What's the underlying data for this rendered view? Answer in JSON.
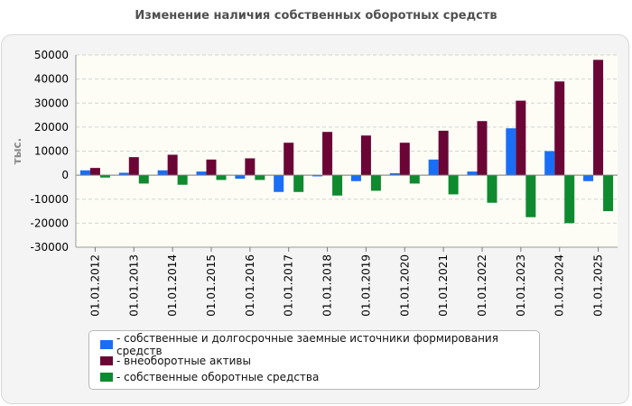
{
  "chart_data": {
    "type": "bar",
    "title": "Изменение наличия собственных оборотных средств",
    "xlabel": "",
    "ylabel": "тыс.",
    "ylim": [
      -30000,
      50000
    ],
    "yticks": [
      50000,
      40000,
      30000,
      20000,
      10000,
      0,
      -10000,
      -20000,
      -30000
    ],
    "grid": true,
    "legend_position": "bottom",
    "categories": [
      "01.01.2012",
      "01.01.2013",
      "01.01.2014",
      "01.01.2015",
      "01.01.2016",
      "01.01.2017",
      "01.01.2018",
      "01.01.2019",
      "01.01.2020",
      "01.01.2021",
      "01.01.2022",
      "01.01.2023",
      "01.01.2024",
      "01.01.2025"
    ],
    "series": [
      {
        "name": "- собственные и долгосрочные заемные источники формирования средств",
        "color": "#1a6ef5",
        "values": [
          2000,
          1000,
          2000,
          1500,
          -1500,
          -7000,
          -500,
          -2500,
          800,
          6500,
          1500,
          19500,
          10000,
          -2500
        ]
      },
      {
        "name": "- внеоборотные активы",
        "color": "#6b0535",
        "values": [
          3000,
          7500,
          8500,
          6500,
          7000,
          13500,
          18000,
          16500,
          13500,
          18500,
          22500,
          31000,
          39000,
          48000
        ]
      },
      {
        "name": "- собственные оборотные средства",
        "color": "#0f8a2f",
        "values": [
          -1000,
          -3500,
          -4000,
          -2000,
          -2000,
          -7000,
          -8500,
          -6500,
          -3500,
          -8000,
          -11500,
          -17500,
          -20000,
          -15000
        ]
      }
    ]
  }
}
